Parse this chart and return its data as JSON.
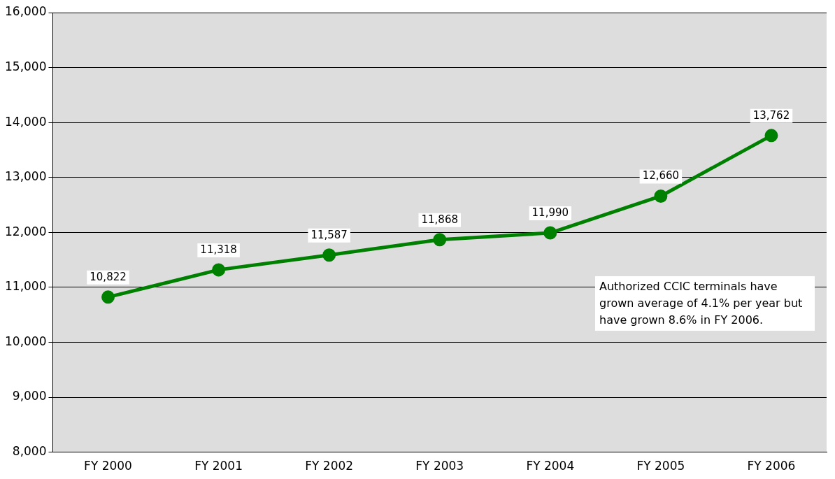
{
  "chart_data": {
    "type": "line",
    "categories": [
      "FY 2000",
      "FY 2001",
      "FY 2002",
      "FY 2003",
      "FY 2004",
      "FY 2005",
      "FY 2006"
    ],
    "series": [
      {
        "color": "#008000",
        "values": [
          10822,
          11318,
          11587,
          11868,
          11990,
          12660,
          13762
        ]
      }
    ],
    "value_labels": [
      "10,822",
      "11,318",
      "11,587",
      "11,868",
      "11,990",
      "12,660",
      "13,762"
    ],
    "ylim": [
      8000,
      16000
    ],
    "yticks": [
      {
        "value": 8000,
        "label": "8,000"
      },
      {
        "value": 9000,
        "label": "9,000"
      },
      {
        "value": 10000,
        "label": "10,000"
      },
      {
        "value": 11000,
        "label": "11,000"
      },
      {
        "value": 12000,
        "label": "12,000"
      },
      {
        "value": 13000,
        "label": "13,000"
      },
      {
        "value": 14000,
        "label": "14,000"
      },
      {
        "value": 15000,
        "label": "15,000"
      },
      {
        "value": 16000,
        "label": "16,000"
      }
    ],
    "grid": "y",
    "legend": false,
    "marker": "circle",
    "line_style": "solid",
    "annotations": [
      "Authorized CCIC terminals have grown average of 4.1% per year but have grown 8.6% in FY 2006."
    ]
  }
}
